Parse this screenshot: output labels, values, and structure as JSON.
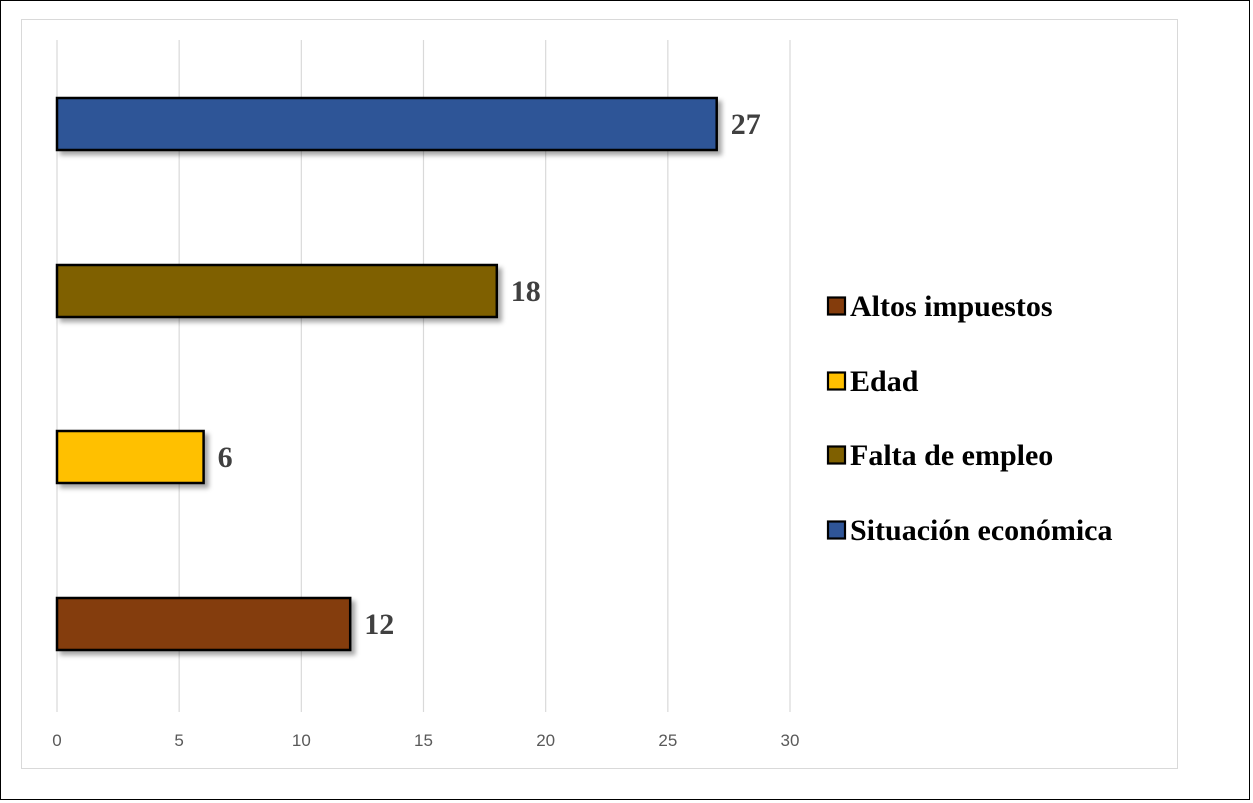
{
  "chart_data": {
    "type": "bar",
    "orientation": "horizontal",
    "categories": [
      "Altos impuestos",
      "Edad",
      "Falta de empleo",
      "Situación económica"
    ],
    "values": [
      12,
      6,
      18,
      27
    ],
    "colors": [
      "#843c0c",
      "#ffc000",
      "#7f6000",
      "#2f5597"
    ],
    "data_labels": [
      "12",
      "6",
      "18",
      "27"
    ],
    "x_ticks": [
      "0",
      "5",
      "10",
      "15",
      "20",
      "25",
      "30"
    ],
    "xlim": [
      0,
      30
    ],
    "grid": true,
    "legend": {
      "placement": "right",
      "entries": [
        "Altos impuestos",
        "Edad",
        "Falta de empleo",
        "Situación económica"
      ]
    },
    "title": "",
    "xlabel": "",
    "ylabel": ""
  }
}
